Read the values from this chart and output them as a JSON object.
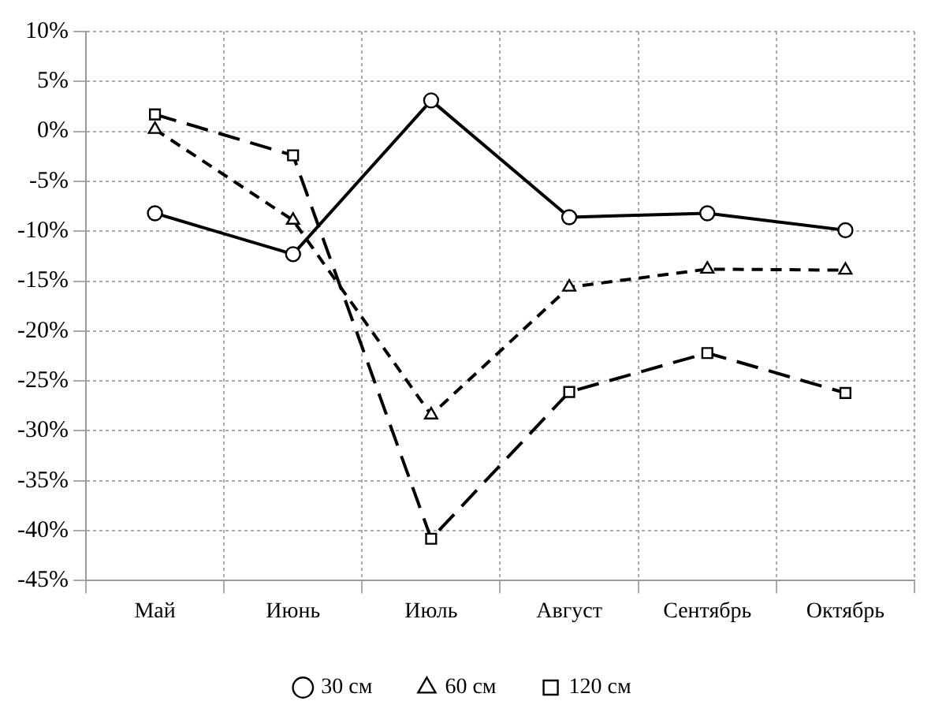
{
  "chart_data": {
    "type": "line",
    "categories": [
      "Май",
      "Июнь",
      "Июль",
      "Август",
      "Сентябрь",
      "Октябрь"
    ],
    "series": [
      {
        "name": "30 см",
        "color": "#000000",
        "marker": "circle",
        "line_style": "solid",
        "values": [
          -8.2,
          -12.3,
          3.1,
          -8.6,
          -8.2,
          -9.9
        ]
      },
      {
        "name": "60 см",
        "color": "#000000",
        "marker": "triangle",
        "line_style": "dashed",
        "values": [
          0.2,
          -8.9,
          -28.4,
          -15.6,
          -13.8,
          -13.9
        ]
      },
      {
        "name": "120 см",
        "color": "#000000",
        "marker": "square",
        "line_style": "longdashed",
        "values": [
          1.7,
          -2.4,
          -40.8,
          -26.1,
          -22.2,
          -26.2
        ]
      }
    ],
    "ylim": [
      -45,
      10
    ],
    "yticks": [
      {
        "value": 10,
        "label": "10%"
      },
      {
        "value": 5,
        "label": "5%"
      },
      {
        "value": 0,
        "label": "0%"
      },
      {
        "value": -5,
        "label": "-5%"
      },
      {
        "value": -10,
        "label": "-10%"
      },
      {
        "value": -15,
        "label": "-15%"
      },
      {
        "value": -20,
        "label": "-20%"
      },
      {
        "value": -25,
        "label": "-25%"
      },
      {
        "value": -30,
        "label": "-30%"
      },
      {
        "value": -35,
        "label": "-35%"
      },
      {
        "value": -40,
        "label": "-40%"
      },
      {
        "value": -45,
        "label": "-45%"
      }
    ],
    "grid": true,
    "legend": "bottom"
  }
}
